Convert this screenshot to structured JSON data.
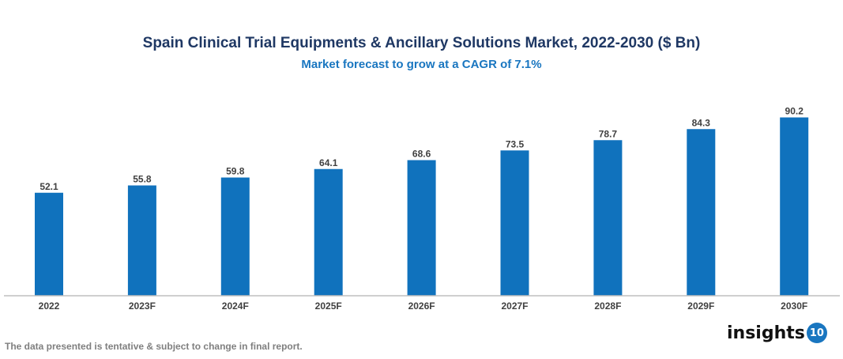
{
  "chart_data": {
    "type": "bar",
    "title": "Spain Clinical Trial Equipments & Ancillary Solutions Market, 2022-2030 ($ Bn)",
    "subtitle": "Market forecast to grow at a CAGR of 7.1%",
    "categories": [
      "2022",
      "2023F",
      "2024F",
      "2025F",
      "2026F",
      "2027F",
      "2028F",
      "2029F",
      "2030F"
    ],
    "values": [
      52.1,
      55.8,
      59.8,
      64.1,
      68.6,
      73.5,
      78.7,
      84.3,
      90.2
    ],
    "xlabel": "",
    "ylabel": "",
    "ylim": [
      0,
      100
    ],
    "grid": false,
    "legend": "none",
    "bar_color": "#1072bd"
  },
  "footnote": "The data presented is tentative & subject to change in final report.",
  "logo": {
    "text": "insights",
    "badge": "10"
  }
}
